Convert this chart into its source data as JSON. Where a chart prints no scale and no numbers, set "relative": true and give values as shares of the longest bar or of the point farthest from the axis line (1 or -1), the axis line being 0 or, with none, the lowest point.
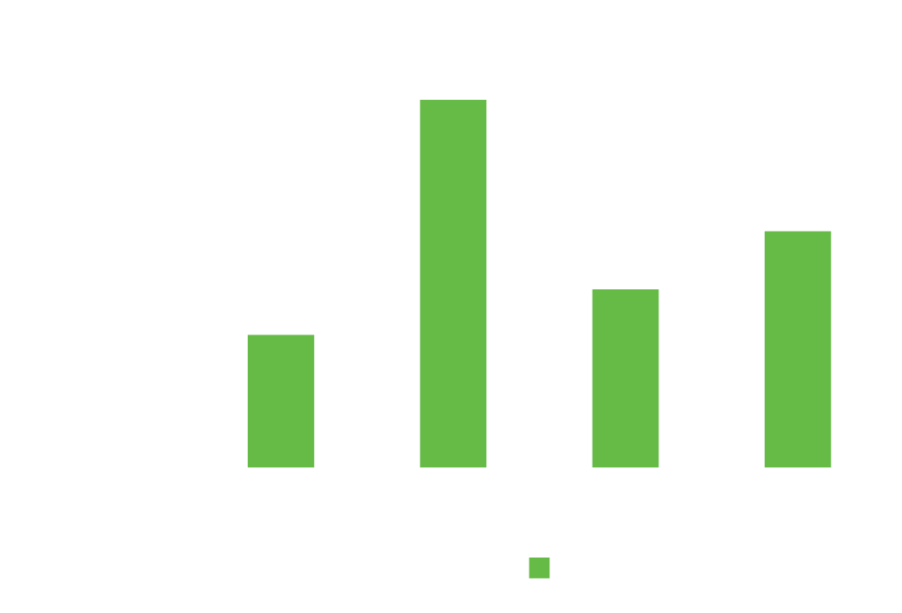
{
  "chart_data": {
    "type": "bar",
    "relative": true,
    "categories": [
      null,
      null,
      null,
      null
    ],
    "series": [
      {
        "color": "#66bb47",
        "values": [
          0.365,
          1,
          0.488,
          0.645
        ]
      }
    ],
    "grid": false
  }
}
